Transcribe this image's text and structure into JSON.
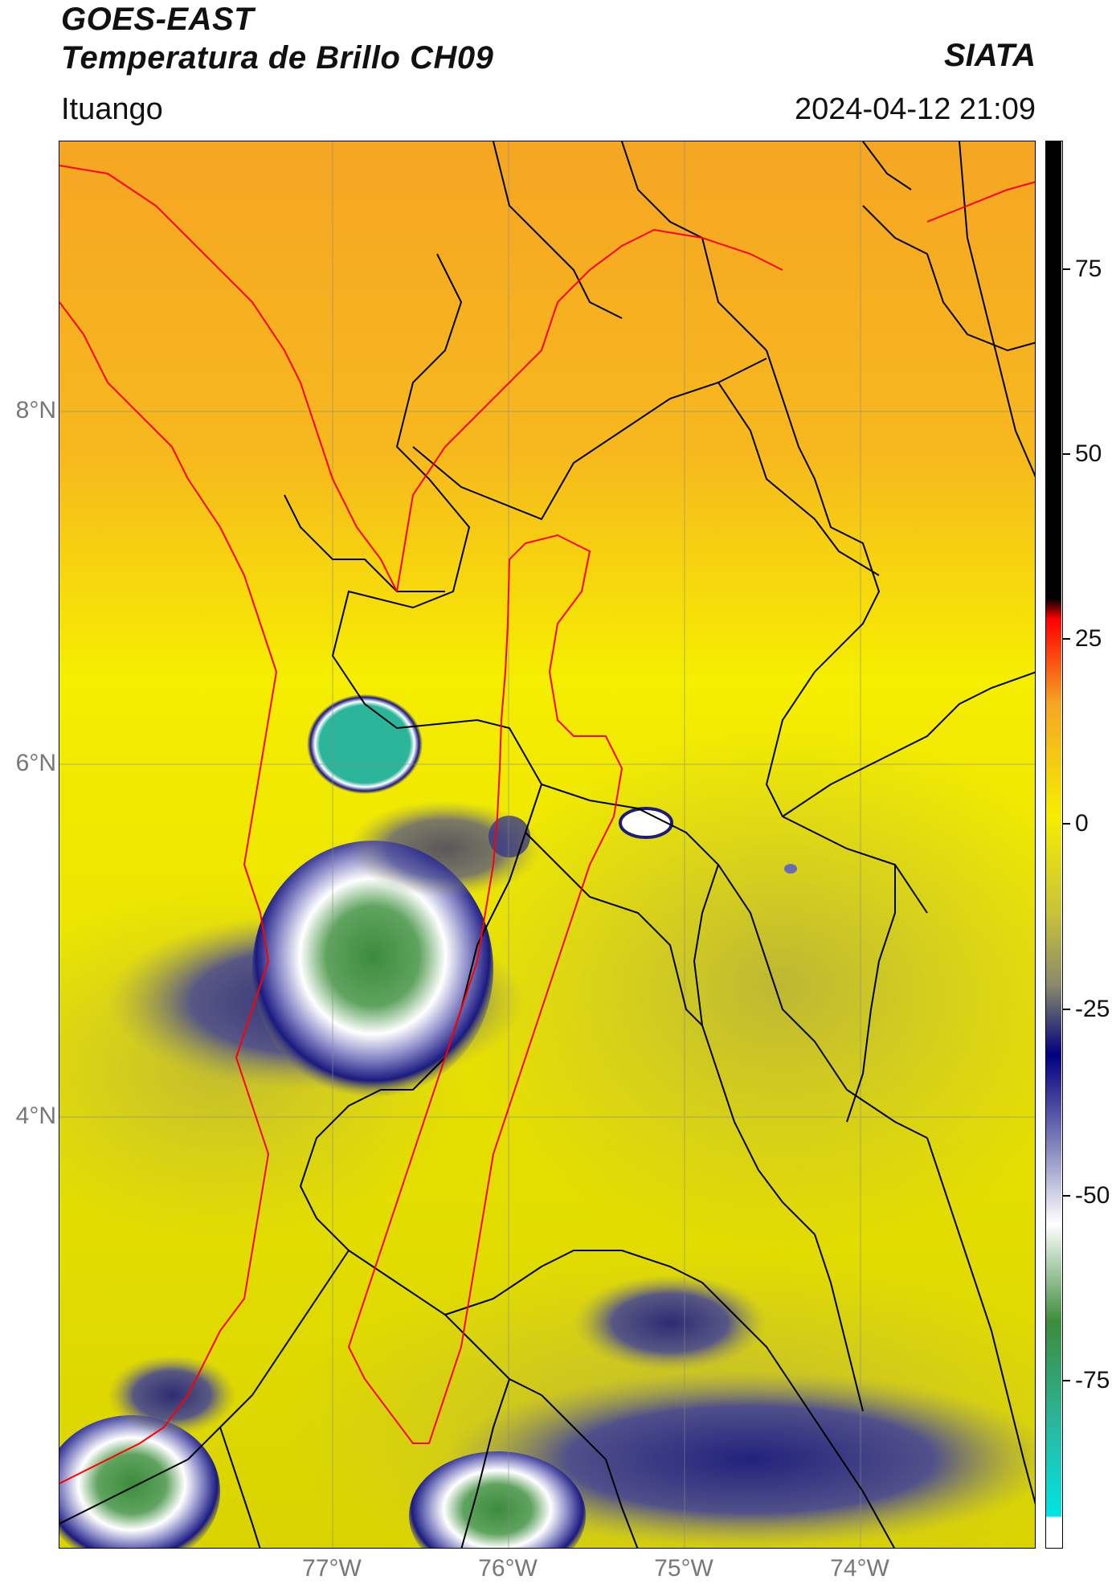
{
  "header": {
    "satellite": "GOES-EAST",
    "product": "Temperatura de Brillo CH09",
    "organization": "SIATA",
    "region": "Ituango",
    "timestamp": "2024-04-12 21:09"
  },
  "map": {
    "lat_ticks": [
      "8°N",
      "6°N",
      "4°N"
    ],
    "lon_ticks": [
      "77°W",
      "76°W",
      "75°W",
      "74°W"
    ],
    "colors": {
      "warm_orange": "#f5a623",
      "yellow": "#f5ee00",
      "olive": "#c8c23a",
      "navy": "#1a1a80",
      "white": "#ffffff",
      "green": "#3c8c3c",
      "teal": "#2bb59a",
      "border_black": "#000000",
      "border_red": "#ff0000"
    }
  },
  "colorbar": {
    "ticks": [
      "75",
      "50",
      "25",
      "0",
      "-25",
      "-50",
      "-75"
    ],
    "gradient": [
      "#ffffff",
      "#00e5e5",
      "#2bb59a",
      "#3c8c3c",
      "#ffffff",
      "#7a7ab8",
      "#000080",
      "#8a8a6a",
      "#c8c23a",
      "#f5ee00",
      "#f5a623",
      "#ff0000",
      "#000000"
    ]
  }
}
